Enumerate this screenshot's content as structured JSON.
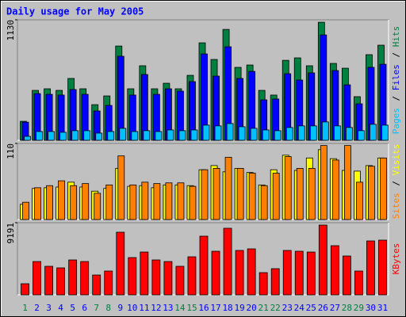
{
  "chart_data": [
    {
      "type": "bar",
      "title": "Daily usage for May 2005",
      "legend_separator": "/",
      "ylim": [
        0,
        1130
      ],
      "yticks": [
        1130
      ],
      "series": [
        {
          "name": "Hits",
          "color": "#008040",
          "values": [
            178,
            468,
            483,
            468,
            580,
            483,
            334,
            416,
            884,
            483,
            699,
            483,
            535,
            483,
            609,
            914,
            758,
            1040,
            684,
            706,
            468,
            424,
            750,
            773,
            699,
            1107,
            721,
            676,
            409,
            803,
            892
          ]
        },
        {
          "name": "Files",
          "color": "#0000ff",
          "values": [
            170,
            438,
            431,
            424,
            476,
            431,
            275,
            327,
            788,
            424,
            617,
            431,
            483,
            461,
            550,
            810,
            602,
            877,
            580,
            646,
            379,
            387,
            624,
            565,
            632,
            988,
            654,
            520,
            342,
            684,
            713
          ]
        },
        {
          "name": "Pages",
          "color": "#00c0ff",
          "values": [
            37,
            82,
            82,
            75,
            90,
            90,
            67,
            82,
            112,
            82,
            90,
            82,
            97,
            90,
            97,
            142,
            135,
            157,
            127,
            112,
            97,
            90,
            120,
            135,
            135,
            172,
            135,
            120,
            90,
            150,
            142
          ]
        }
      ]
    },
    {
      "type": "bar",
      "legend_separator": "/",
      "ylim": [
        0,
        110
      ],
      "yticks": [
        110
      ],
      "series": [
        {
          "name": "Visits",
          "color": "#ffff00",
          "values": [
            22,
            45,
            46,
            47,
            54,
            47,
            41,
            45,
            74,
            48,
            49,
            46,
            50,
            50,
            49,
            72,
            78,
            69,
            74,
            68,
            50,
            72,
            93,
            71,
            89,
            101,
            88,
            71,
            70,
            78,
            89
          ]
        },
        {
          "name": "Sites",
          "color": "#ff8000",
          "values": [
            25,
            46,
            49,
            56,
            49,
            52,
            38,
            50,
            92,
            50,
            54,
            52,
            53,
            53,
            48,
            72,
            74,
            90,
            74,
            67,
            49,
            67,
            91,
            74,
            74,
            107,
            86,
            107,
            54,
            77,
            89
          ]
        }
      ]
    },
    {
      "type": "bar",
      "ylim": [
        0,
        9191
      ],
      "yticks": [
        9191
      ],
      "categories": [
        "1",
        "2",
        "3",
        "4",
        "5",
        "6",
        "7",
        "8",
        "9",
        "10",
        "11",
        "12",
        "13",
        "14",
        "15",
        "16",
        "17",
        "18",
        "19",
        "20",
        "21",
        "22",
        "23",
        "24",
        "25",
        "26",
        "27",
        "28",
        "29",
        "30",
        "31"
      ],
      "category_colors": [
        "#008040",
        "#0000ff",
        "#0000ff",
        "#0000ff",
        "#0000ff",
        "#0000ff",
        "#008040",
        "#008040",
        "#0000ff",
        "#0000ff",
        "#0000ff",
        "#0000ff",
        "#0000ff",
        "#008040",
        "#008040",
        "#0000ff",
        "#0000ff",
        "#0000ff",
        "#0000ff",
        "#0000ff",
        "#008040",
        "#008040",
        "#0000ff",
        "#0000ff",
        "#0000ff",
        "#0000ff",
        "#0000ff",
        "#008040",
        "#008040",
        "#0000ff",
        "#0000ff"
      ],
      "series": [
        {
          "name": "KBytes",
          "color": "#ff0000",
          "values": [
            1414,
            4241,
            3635,
            3433,
            4443,
            4241,
            2524,
            3029,
            7979,
            4746,
            5452,
            4443,
            4241,
            3635,
            4847,
            7474,
            5553,
            8484,
            5654,
            5856,
            2827,
            3332,
            5654,
            5553,
            5452,
            8888,
            6260,
            4948,
            3029,
            6866,
            6967
          ]
        }
      ]
    }
  ]
}
